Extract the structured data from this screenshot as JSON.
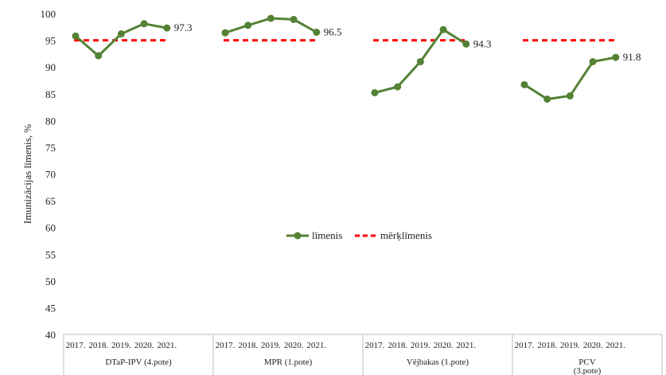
{
  "chart_data": {
    "type": "line",
    "ylabel": "Imunizācijas līmenis, %",
    "ylim": [
      40,
      100
    ],
    "yticks": [
      40,
      45,
      50,
      55,
      60,
      65,
      70,
      75,
      80,
      85,
      90,
      95,
      100
    ],
    "grid": false,
    "legend_position": "center",
    "years": [
      "2017.",
      "2018.",
      "2019.",
      "2020.",
      "2021."
    ],
    "groups": [
      {
        "name": "DTaP-IPV (4.pote)",
        "values": [
          95.8,
          92.1,
          96.2,
          98.1,
          97.3
        ],
        "target": 95,
        "end_label": "97.3"
      },
      {
        "name": "MPR (1.pote)",
        "values": [
          96.4,
          97.8,
          99.1,
          98.9,
          96.5
        ],
        "target": 95,
        "end_label": "96.5"
      },
      {
        "name": "Vējbakas (1.pote)",
        "values": [
          85.2,
          86.3,
          91.0,
          97.0,
          94.3
        ],
        "target": 95,
        "end_label": "94.3"
      },
      {
        "name": "PCV\n(3.pote)",
        "values": [
          86.7,
          84.0,
          84.6,
          91.0,
          91.8
        ],
        "target": 95,
        "end_label": "91.8"
      }
    ],
    "series": [
      {
        "name": "līmenis",
        "color": "#548235",
        "style": "solid-marker"
      },
      {
        "name": "mērķlīmenis",
        "color": "#ff0000",
        "style": "dashed"
      }
    ]
  }
}
